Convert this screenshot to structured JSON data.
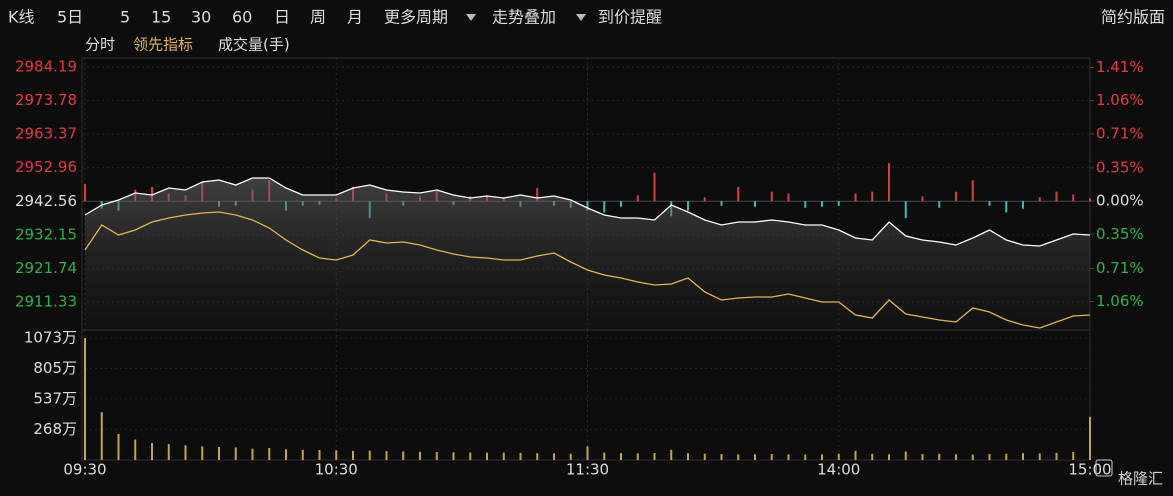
{
  "toolbar": {
    "items": [
      "K线",
      "5日",
      "5",
      "15",
      "30",
      "60",
      "日",
      "周",
      "月",
      "更多周期",
      "走势叠加",
      "到价提醒"
    ],
    "layout": "简约版面"
  },
  "tabs": [
    "分时",
    "领先指标",
    "成交量(手)"
  ],
  "watermark": "格隆汇",
  "chart_data": [
    {
      "type": "line",
      "x": [
        0,
        4,
        8,
        12,
        16,
        20,
        24,
        28,
        32,
        36,
        40,
        44,
        48,
        52,
        56,
        60,
        64,
        68,
        72,
        76,
        80,
        84,
        88,
        92,
        96,
        100,
        104,
        108,
        112,
        116,
        120,
        124,
        128,
        132,
        136,
        140,
        144,
        148,
        152,
        156,
        160,
        164,
        168,
        172,
        176,
        180,
        184,
        188,
        192,
        196,
        200,
        204,
        208,
        212,
        216,
        220,
        224,
        228,
        232,
        236,
        240
      ],
      "xlim": [
        0,
        240
      ],
      "ylim": [
        2902.65,
        2986.98
      ],
      "yticks": [
        2984.19,
        2973.78,
        2963.37,
        2952.96,
        2942.56,
        2932.15,
        2921.74,
        2911.33
      ],
      "y2lim": [
        -1.36,
        1.51
      ],
      "y2ticks": [
        {
          "value": 1.41,
          "label": "1.41%"
        },
        {
          "value": 1.06,
          "label": "1.06%"
        },
        {
          "value": 0.71,
          "label": "0.71%"
        },
        {
          "value": 0.35,
          "label": "0.35%"
        },
        {
          "value": 0,
          "label": "0.00%"
        },
        {
          "value": -0.35,
          "label": "0.35%"
        },
        {
          "value": -0.71,
          "label": "0.71%"
        },
        {
          "value": -1.06,
          "label": "1.06%"
        }
      ],
      "up_color": "#e8383d",
      "down_color": "#27b548",
      "neutral_color": "#dcdcdc",
      "grid": true,
      "series": [
        {
          "type": "line",
          "color": "#ffffff",
          "values": [
            2938.31,
            2941.41,
            2942.96,
            2945.13,
            2944.51,
            2946.68,
            2946.06,
            2948.54,
            2949.16,
            2947.61,
            2949.78,
            2949.78,
            2946.68,
            2944.51,
            2944.51,
            2944.51,
            2946.68,
            2947.61,
            2946.06,
            2945.44,
            2945.13,
            2946.06,
            2944.51,
            2943.58,
            2944.2,
            2943.58,
            2944.51,
            2943.58,
            2944.2,
            2942.96,
            2940.48,
            2938.31,
            2937.38,
            2937.38,
            2936.76,
            2941.41,
            2939.24,
            2936.76,
            2935.21,
            2936.14,
            2936.14,
            2936.76,
            2936.14,
            2935.21,
            2935.21,
            2933.66,
            2931.18,
            2930.56,
            2936.14,
            2931.8,
            2930.56,
            2929.94,
            2929.01,
            2931.18,
            2933.66,
            2930.56,
            2929.01,
            2928.7,
            2930.56,
            2932.42,
            2932.11
          ]
        },
        {
          "type": "line",
          "color": "#e3b54d",
          "values": [
            2927.46,
            2935.21,
            2932.11,
            2933.66,
            2936.14,
            2937.38,
            2938.31,
            2938.93,
            2939.24,
            2938.31,
            2936.76,
            2934.28,
            2930.56,
            2927.46,
            2924.98,
            2924.36,
            2925.91,
            2930.56,
            2929.63,
            2929.94,
            2929.01,
            2927.46,
            2926.22,
            2925.29,
            2924.98,
            2924.36,
            2924.36,
            2925.6,
            2926.53,
            2923.74,
            2921.26,
            2919.71,
            2918.78,
            2917.54,
            2916.61,
            2916.92,
            2918.78,
            2914.44,
            2911.96,
            2912.58,
            2912.89,
            2912.89,
            2913.82,
            2912.58,
            2911.34,
            2911.34,
            2907.31,
            2906.38,
            2911.96,
            2907.62,
            2906.69,
            2905.76,
            2905.14,
            2909.48,
            2908.24,
            2905.76,
            2904.21,
            2903.28,
            2905.14,
            2907.0,
            2907.31
          ]
        },
        {
          "type": "bar",
          "axis": "y2",
          "up_color": "#e03c3c",
          "down_color": "#3ab7c2",
          "values": [
            0.18,
            -0.08,
            -0.1,
            0.12,
            0.15,
            0.08,
            0.06,
            0.2,
            -0.06,
            -0.05,
            0.12,
            0.22,
            -0.1,
            -0.05,
            -0.04,
            0.03,
            0.15,
            -0.18,
            0.08,
            -0.05,
            0.05,
            0.12,
            -0.04,
            0.05,
            0.06,
            0.04,
            -0.06,
            0.14,
            -0.05,
            -0.07,
            -0.1,
            -0.12,
            -0.06,
            0.06,
            0.3,
            -0.16,
            -0.1,
            0.04,
            -0.05,
            0.15,
            -0.06,
            0.1,
            0.08,
            -0.07,
            -0.06,
            -0.05,
            0.08,
            0.1,
            0.4,
            -0.18,
            0.05,
            -0.07,
            0.1,
            0.22,
            -0.05,
            -0.12,
            -0.08,
            0.04,
            0.1,
            0.07,
            0.03
          ]
        }
      ]
    },
    {
      "type": "bar",
      "x": [
        0,
        4,
        8,
        12,
        16,
        20,
        24,
        28,
        32,
        36,
        40,
        44,
        48,
        52,
        56,
        60,
        64,
        68,
        72,
        76,
        80,
        84,
        88,
        92,
        96,
        100,
        104,
        108,
        112,
        116,
        120,
        124,
        128,
        132,
        136,
        140,
        144,
        148,
        152,
        156,
        160,
        164,
        168,
        172,
        176,
        180,
        184,
        188,
        192,
        196,
        200,
        204,
        208,
        212,
        216,
        220,
        224,
        228,
        232,
        236,
        240
      ],
      "xlim": [
        0,
        240
      ],
      "xticks": [
        {
          "value": 0,
          "label": "09:30"
        },
        {
          "value": 60,
          "label": "10:30"
        },
        {
          "value": 120,
          "label": "11:30"
        },
        {
          "value": 180,
          "label": "14:00"
        },
        {
          "value": 240,
          "label": "15:00"
        }
      ],
      "ylim": [
        0,
        1143
      ],
      "yticks": [
        {
          "value": 1073,
          "label": "1073万"
        },
        {
          "value": 805,
          "label": "805万"
        },
        {
          "value": 537,
          "label": "537万"
        },
        {
          "value": 268,
          "label": "268万"
        }
      ],
      "color": "#c9a445",
      "values": [
        1073,
        420,
        230,
        180,
        150,
        140,
        130,
        120,
        115,
        110,
        100,
        105,
        95,
        90,
        88,
        85,
        80,
        82,
        78,
        75,
        72,
        70,
        68,
        66,
        64,
        65,
        62,
        60,
        58,
        56,
        120,
        65,
        60,
        58,
        62,
        90,
        60,
        55,
        52,
        50,
        50,
        52,
        50,
        48,
        50,
        55,
        80,
        55,
        50,
        75,
        52,
        55,
        50,
        48,
        52,
        55,
        60,
        58,
        62,
        70,
        380
      ]
    }
  ]
}
